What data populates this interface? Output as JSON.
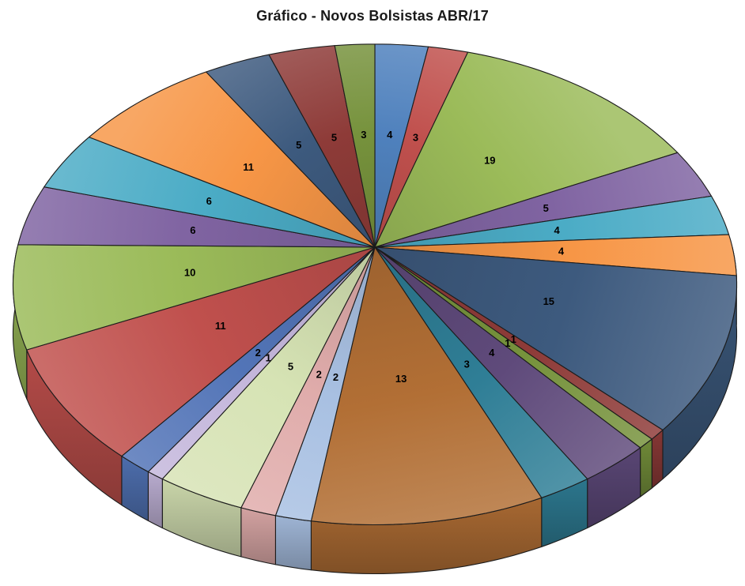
{
  "chart_data": {
    "type": "pie",
    "is_3d": true,
    "title": "Gráfico - Novos Bolsistas ABR/17",
    "title_color": "#1a1a1a",
    "background": "#ffffff",
    "legend": "none",
    "labels_show": "value",
    "start_angle_deg": 0,
    "direction": "clockwise",
    "total": 145,
    "slices": [
      {
        "value": 4,
        "color": "#4F81BD"
      },
      {
        "value": 3,
        "color": "#C0504D"
      },
      {
        "value": 19,
        "color": "#9BBB59"
      },
      {
        "value": 5,
        "color": "#8064A2"
      },
      {
        "value": 4,
        "color": "#4BACC6"
      },
      {
        "value": 4,
        "color": "#F79646"
      },
      {
        "value": 15,
        "color": "#3D5A7E"
      },
      {
        "value": 1,
        "color": "#8E3B38"
      },
      {
        "value": 1,
        "color": "#76923C"
      },
      {
        "value": 4,
        "color": "#5F4A7B"
      },
      {
        "value": 3,
        "color": "#2F7E96"
      },
      {
        "value": 13,
        "color": "#B26F35"
      },
      {
        "value": 2,
        "color": "#A8C0E2"
      },
      {
        "value": 2,
        "color": "#E0ACAB"
      },
      {
        "value": 5,
        "color": "#D6E3B4"
      },
      {
        "value": 1,
        "color": "#C4B6DB"
      },
      {
        "value": 2,
        "color": "#5274B7"
      },
      {
        "value": 11,
        "color": "#C0504D"
      },
      {
        "value": 10,
        "color": "#9BBB59"
      },
      {
        "value": 6,
        "color": "#8064A2"
      },
      {
        "value": 6,
        "color": "#4BACC6"
      },
      {
        "value": 11,
        "color": "#F79646"
      },
      {
        "value": 5,
        "color": "#3D5A7E"
      },
      {
        "value": 5,
        "color": "#8E3B38"
      },
      {
        "value": 3,
        "color": "#76923C"
      }
    ]
  }
}
